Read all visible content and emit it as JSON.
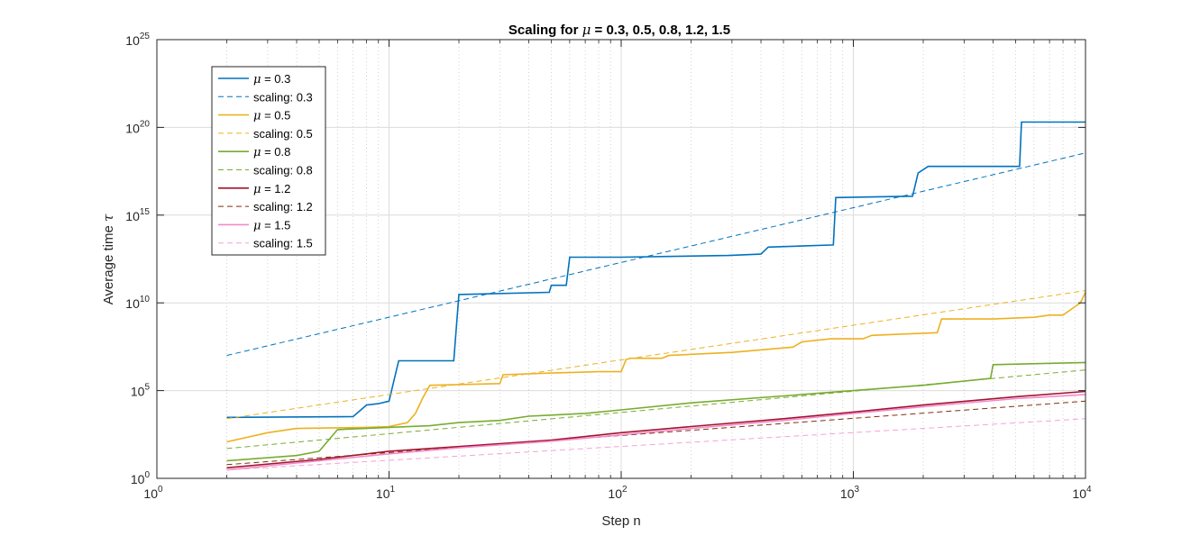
{
  "chart_data": {
    "type": "line",
    "title": "Scaling for μ = 0.3, 0.5, 0.8, 1.2, 1.5",
    "title_prefix": "Scaling for ",
    "title_symbol": "μ",
    "title_suffix": " = 0.3, 0.5, 0.8, 1.2, 1.5",
    "xlabel": "Step n",
    "ylabel_text": "Average time ",
    "ylabel_symbol": "τ",
    "x_scale": "log",
    "y_scale": "log",
    "xlim": [
      1,
      10000
    ],
    "ylim": [
      1,
      1e+25
    ],
    "grid": true,
    "legend_position": "top-left",
    "x_ticks": [
      {
        "base": "10",
        "exp": "0"
      },
      {
        "base": "10",
        "exp": "1"
      },
      {
        "base": "10",
        "exp": "2"
      },
      {
        "base": "10",
        "exp": "3"
      },
      {
        "base": "10",
        "exp": "4"
      }
    ],
    "y_ticks": [
      {
        "base": "10",
        "exp": "0"
      },
      {
        "base": "10",
        "exp": "5"
      },
      {
        "base": "10",
        "exp": "10"
      },
      {
        "base": "10",
        "exp": "15"
      },
      {
        "base": "10",
        "exp": "20"
      },
      {
        "base": "10",
        "exp": "25"
      }
    ],
    "series": [
      {
        "name_symbol": "μ",
        "name_value": " = 0.3",
        "style": "solid",
        "color": "#0072BD",
        "points": [
          [
            2,
            3000.0
          ],
          [
            7,
            3300.0
          ],
          [
            8,
            15000.0
          ],
          [
            9,
            18000.0
          ],
          [
            10,
            25000.0
          ],
          [
            11,
            5000000.0
          ],
          [
            19,
            5000000.0
          ],
          [
            20,
            30000000000.0
          ],
          [
            49,
            40000000000.0
          ],
          [
            50,
            100000000000.0
          ],
          [
            58,
            100000000000.0
          ],
          [
            60,
            4000000000000.0
          ],
          [
            100,
            4000000000000.0
          ],
          [
            290,
            5000000000000.0
          ],
          [
            400,
            6000000000000.0
          ],
          [
            430,
            15000000000000.0
          ],
          [
            820,
            20000000000000.0
          ],
          [
            840,
            1e+16
          ],
          [
            1800,
            1.2e+16
          ],
          [
            1900,
            2.5e+17
          ],
          [
            2100,
            6e+17
          ],
          [
            5200,
            6e+17
          ],
          [
            5300,
            2e+20
          ],
          [
            10000,
            2e+20
          ]
        ]
      },
      {
        "name_text": "scaling: 0.3",
        "style": "dashed",
        "color": "#0072BD",
        "points": [
          [
            2,
            10000000.0
          ],
          [
            10000,
            3.5e+18
          ]
        ]
      },
      {
        "name_symbol": "μ",
        "name_value": " = 0.5",
        "style": "solid",
        "color": "#EDB120",
        "points": [
          [
            2,
            120
          ],
          [
            3,
            400
          ],
          [
            4,
            700
          ],
          [
            8,
            800
          ],
          [
            10,
            900
          ],
          [
            12,
            1500
          ],
          [
            13,
            5000
          ],
          [
            14,
            40000.0
          ],
          [
            15,
            200000.0
          ],
          [
            30,
            250000.0
          ],
          [
            31,
            800000.0
          ],
          [
            50,
            1000000.0
          ],
          [
            80,
            1200000.0
          ],
          [
            100,
            1200000.0
          ],
          [
            105,
            6000000.0
          ],
          [
            110,
            7000000.0
          ],
          [
            150,
            7000000.0
          ],
          [
            160,
            10000000.0
          ],
          [
            300,
            15000000.0
          ],
          [
            550,
            30000000.0
          ],
          [
            600,
            60000000.0
          ],
          [
            800,
            90000000.0
          ],
          [
            1100,
            90000000.0
          ],
          [
            1200,
            140000000.0
          ],
          [
            2300,
            200000000.0
          ],
          [
            2400,
            1200000000.0
          ],
          [
            4000,
            1200000000.0
          ],
          [
            6000,
            1500000000.0
          ],
          [
            7000,
            2000000000.0
          ],
          [
            8000,
            2000000000.0
          ],
          [
            9000,
            6000000000.0
          ],
          [
            9500,
            10000000000.0
          ],
          [
            10000,
            40000000000.0
          ]
        ]
      },
      {
        "name_text": "scaling: 0.5",
        "style": "dashed",
        "color": "#EDB120",
        "points": [
          [
            2,
            2500.0
          ],
          [
            10000,
            50000000000.0
          ]
        ]
      },
      {
        "name_symbol": "μ",
        "name_value": " = 0.8",
        "style": "solid",
        "color": "#77AC30",
        "points": [
          [
            2,
            10
          ],
          [
            4,
            20
          ],
          [
            5,
            35
          ],
          [
            6,
            600
          ],
          [
            10,
            800
          ],
          [
            15,
            1000
          ],
          [
            20,
            1500
          ],
          [
            30,
            2000
          ],
          [
            40,
            3500
          ],
          [
            50,
            4000
          ],
          [
            70,
            5000
          ],
          [
            100,
            8000
          ],
          [
            200,
            20000.0
          ],
          [
            500,
            50000.0
          ],
          [
            1000,
            100000.0
          ],
          [
            2000,
            200000.0
          ],
          [
            3900,
            500000.0
          ],
          [
            4000,
            3000000.0
          ],
          [
            10000,
            4000000.0
          ]
        ]
      },
      {
        "name_text": "scaling: 0.8",
        "style": "dashed",
        "color": "#77AC30",
        "points": [
          [
            2,
            50
          ],
          [
            10000,
            1500000.0
          ]
        ]
      },
      {
        "name_symbol": "μ",
        "name_value": " = 1.2",
        "style": "solid",
        "color": "#A2142F",
        "points": [
          [
            2,
            4
          ],
          [
            5,
            12
          ],
          [
            10,
            35
          ],
          [
            20,
            65
          ],
          [
            50,
            150
          ],
          [
            100,
            400
          ],
          [
            200,
            900
          ],
          [
            500,
            2500
          ],
          [
            1000,
            6000
          ],
          [
            2000,
            15000.0
          ],
          [
            5000,
            45000.0
          ],
          [
            10000,
            90000.0
          ]
        ]
      },
      {
        "name_text": "scaling: 1.2",
        "style": "dashed",
        "color": "#7E2F0E",
        "points": [
          [
            2,
            6
          ],
          [
            10000,
            25000.0
          ]
        ]
      },
      {
        "name_symbol": "μ",
        "name_value": " = 1.5",
        "style": "solid",
        "color": "#F38AC9",
        "points": [
          [
            2,
            3
          ],
          [
            5,
            10
          ],
          [
            10,
            25
          ],
          [
            20,
            55
          ],
          [
            50,
            130
          ],
          [
            100,
            300
          ],
          [
            200,
            700
          ],
          [
            500,
            2000
          ],
          [
            1000,
            5000
          ],
          [
            2000,
            12000.0
          ],
          [
            5000,
            35000.0
          ],
          [
            10000,
            60000.0
          ]
        ]
      },
      {
        "name_text": "scaling: 1.5",
        "style": "dashed",
        "color": "#F4A3D3",
        "points": [
          [
            2,
            3
          ],
          [
            10000,
            2500
          ]
        ]
      }
    ]
  }
}
